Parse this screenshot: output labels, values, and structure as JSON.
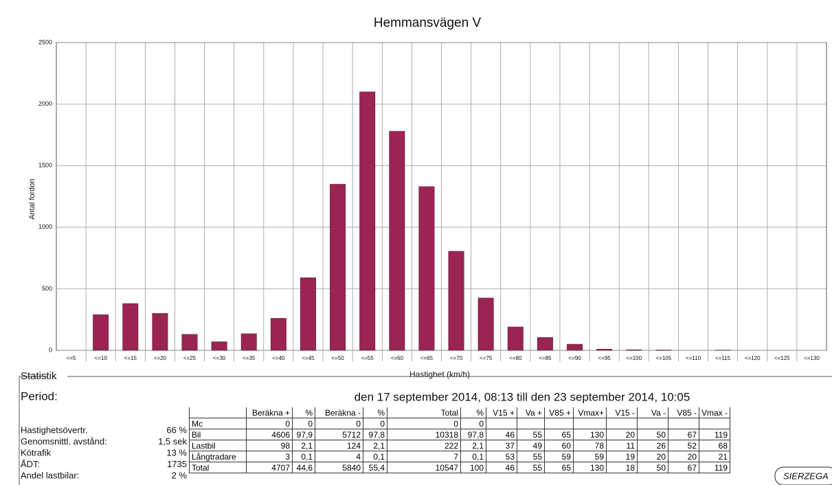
{
  "chart_data": {
    "type": "bar",
    "title": "Hemmansvägen V",
    "y_label": "Antal fordon",
    "x_label": "Hastighet (km/h)",
    "categories": [
      "<=5",
      "<=10",
      "<=15",
      "<=20",
      "<=25",
      "<=30",
      "<=35",
      "<=40",
      "<=45",
      "<=50",
      "<=55",
      "<=60",
      "<=65",
      "<=70",
      "<=75",
      "<=80",
      "<=85",
      "<=90",
      "<=95",
      "<=100",
      "<=105",
      "<=110",
      "<=115",
      "<=120",
      "<=125",
      "<=130"
    ],
    "values": [
      0,
      290,
      380,
      300,
      130,
      70,
      135,
      260,
      590,
      1350,
      2100,
      1780,
      1330,
      805,
      425,
      190,
      105,
      50,
      10,
      5,
      3,
      0,
      2,
      0,
      0,
      0
    ],
    "color": "#9b2452",
    "ylim": [
      0,
      2500
    ],
    "yticks": [
      0,
      500,
      1000,
      1500,
      2000,
      2500
    ],
    "grid": true
  },
  "statistics": {
    "heading": "Statistik",
    "period_label": "Period:",
    "period": "den 17 september 2014, 08:13 till den 23 september 2014, 10:05",
    "items": [
      {
        "label": "Hastighetsövertr.",
        "value": "66 %"
      },
      {
        "label": "Genomsnittl. avstånd:",
        "value": "1,5 sek"
      },
      {
        "label": "Kötrafik",
        "value": "13 %"
      },
      {
        "label": "ÅDT:",
        "value": "1735"
      },
      {
        "label": "Andel lastbilar:",
        "value": "2 %"
      }
    ],
    "table": {
      "header": [
        "Beräkna +",
        "%",
        "Beräkna -",
        "%",
        "Total",
        "%",
        "V15 +",
        "Va +",
        "V85 +",
        "Vmax+",
        "V15 -",
        "Va -",
        "V85 -",
        "Vmax -"
      ],
      "rows": [
        {
          "label": "Mc",
          "cells": [
            "0",
            "0",
            "0",
            "0",
            "0",
            "0"
          ]
        },
        {
          "label": "Bil",
          "cells": [
            "4606",
            "97,9",
            "5712",
            "97,8",
            "10318",
            "97,8",
            "46",
            "55",
            "65",
            "130",
            "20",
            "50",
            "67",
            "119"
          ]
        },
        {
          "label": "Lastbil",
          "cells": [
            "98",
            "2,1",
            "124",
            "2,1",
            "222",
            "2,1",
            "37",
            "49",
            "60",
            "78",
            "11",
            "26",
            "52",
            "68"
          ]
        },
        {
          "label": "Långtradare",
          "cells": [
            "3",
            "0,1",
            "4",
            "0,1",
            "7",
            "0,1",
            "53",
            "55",
            "59",
            "59",
            "19",
            "20",
            "20",
            "21"
          ]
        },
        {
          "label": "Total",
          "cells": [
            "4707",
            "44,6",
            "5840",
            "55,4",
            "10547",
            "100",
            "46",
            "55",
            "65",
            "130",
            "18",
            "50",
            "67",
            "119"
          ]
        }
      ]
    },
    "logo": "SIERZEGA"
  }
}
